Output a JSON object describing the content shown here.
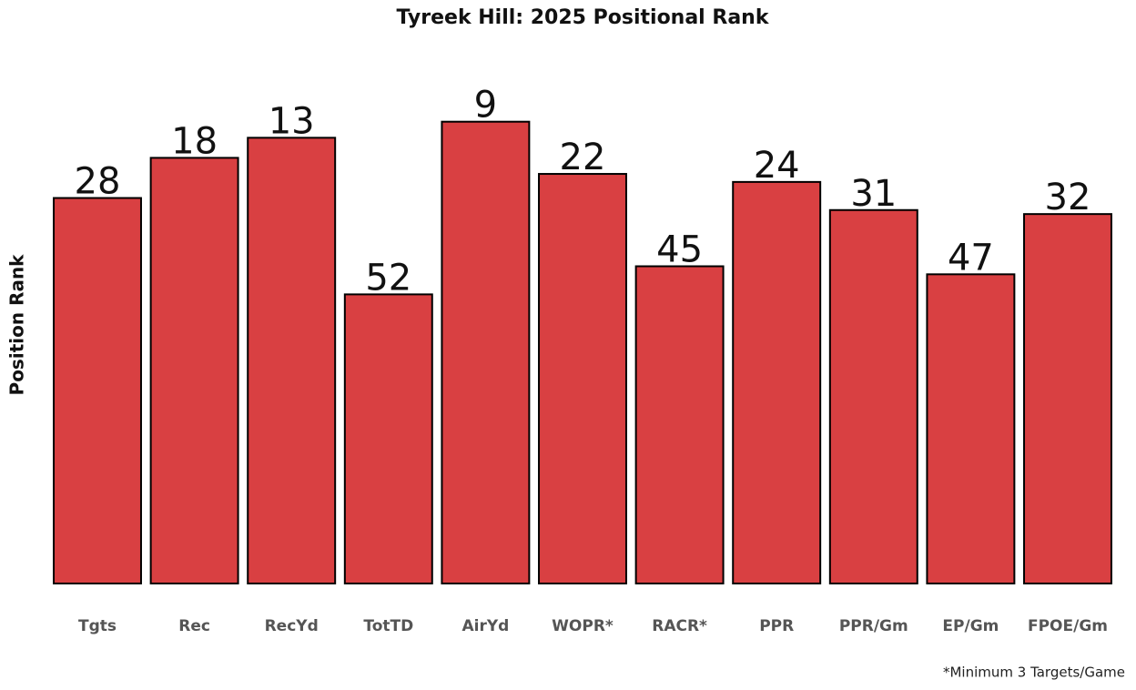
{
  "chart_data": {
    "type": "bar",
    "title": "Tyreek Hill: 2025 Positional Rank",
    "y_label": "Position Rank",
    "footnote": "*Minimum 3 Targets/Game",
    "categories": [
      "Tgts",
      "Rec",
      "RecYd",
      "TotTD",
      "AirYd",
      "WOPR*",
      "RACR*",
      "PPR",
      "PPR/Gm",
      "EP/Gm",
      "FPOE/Gm"
    ],
    "values": [
      28,
      18,
      13,
      52,
      9,
      22,
      45,
      24,
      31,
      47,
      32
    ],
    "color": "#d94042",
    "ylim": [
      124,
      0
    ],
    "grid": false
  }
}
